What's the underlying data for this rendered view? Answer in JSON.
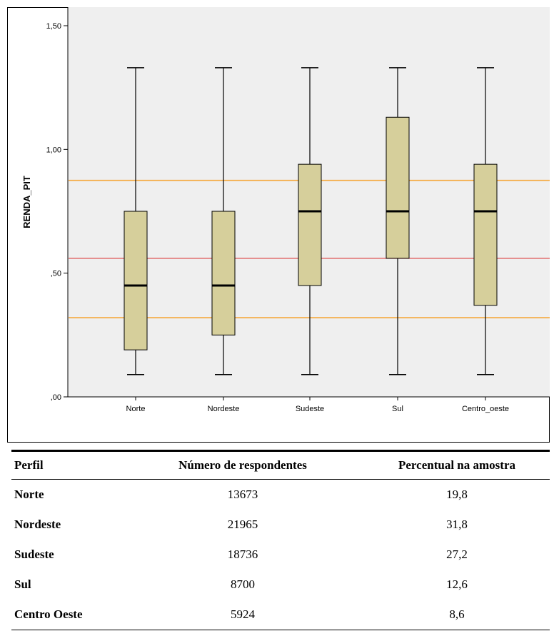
{
  "chart_data": {
    "type": "boxplot",
    "ylabel": "RENDA_PIT",
    "xlabel": "",
    "ylim": [
      0,
      1.5
    ],
    "yticks": [
      {
        "value": 0.0,
        "label": ",00"
      },
      {
        "value": 0.5,
        "label": ",50"
      },
      {
        "value": 1.0,
        "label": "1,00"
      },
      {
        "value": 1.5,
        "label": "1,50"
      }
    ],
    "categories": [
      "Norte",
      "Nordeste",
      "Sudeste",
      "Sul",
      "Centro_oeste"
    ],
    "boxes": [
      {
        "category": "Norte",
        "min": 0.09,
        "q1": 0.19,
        "median": 0.45,
        "q3": 0.75,
        "max": 1.33
      },
      {
        "category": "Nordeste",
        "min": 0.09,
        "q1": 0.25,
        "median": 0.45,
        "q3": 0.75,
        "max": 1.33
      },
      {
        "category": "Sudeste",
        "min": 0.09,
        "q1": 0.45,
        "median": 0.75,
        "q3": 0.94,
        "max": 1.33
      },
      {
        "category": "Sul",
        "min": 0.09,
        "q1": 0.56,
        "median": 0.75,
        "q3": 1.13,
        "max": 1.33
      },
      {
        "category": "Centro_oeste",
        "min": 0.09,
        "q1": 0.37,
        "median": 0.75,
        "q3": 0.94,
        "max": 1.33
      }
    ],
    "reference_lines": [
      {
        "value": 0.875,
        "color": "#f5a83c"
      },
      {
        "value": 0.56,
        "color": "#e06a6a"
      },
      {
        "value": 0.32,
        "color": "#f5a83c"
      }
    ],
    "colors": {
      "plot_background": "#efefef",
      "box_fill": "#d6cf9b",
      "box_stroke": "#000000",
      "median": "#000000"
    },
    "grid": false
  },
  "table": {
    "headers": [
      "Perfil",
      "Número de respondentes",
      "Percentual na amostra"
    ],
    "rows": [
      [
        "Norte",
        "13673",
        "19,8"
      ],
      [
        "Nordeste",
        "21965",
        "31,8"
      ],
      [
        "Sudeste",
        "18736",
        "27,2"
      ],
      [
        "Sul",
        "8700",
        "12,6"
      ],
      [
        "Centro Oeste",
        "5924",
        "8,6"
      ]
    ]
  }
}
